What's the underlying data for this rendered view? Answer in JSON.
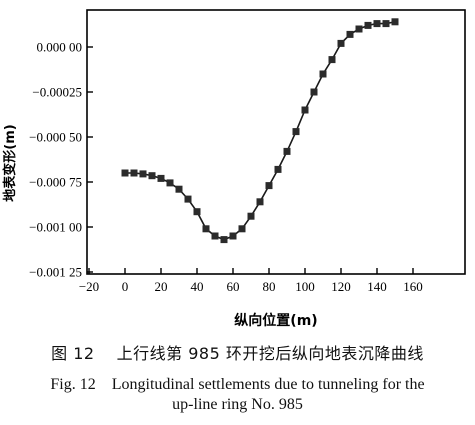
{
  "chart_data": {
    "type": "line",
    "xlabel": "纵向位置(m)",
    "ylabel": "地表变形(m)",
    "xlim": [
      -20,
      160
    ],
    "ylim": [
      -0.00125,
      0.00015
    ],
    "x_ticks": [
      -20,
      0,
      20,
      40,
      60,
      80,
      100,
      120,
      140,
      160
    ],
    "x_tick_labels": [
      "−20",
      "0",
      "20",
      "40",
      "60",
      "80",
      "100",
      "120",
      "140",
      "160"
    ],
    "y_ticks": [
      0.0,
      -0.00025,
      -0.0005,
      -0.00075,
      -0.001,
      -0.00125
    ],
    "y_tick_labels": [
      "0.000 00",
      "−0.00025",
      "−0.000 50",
      "−0.000 75",
      "−0.001 00",
      "−0.001 25"
    ],
    "grid": false,
    "marker": "square",
    "series": [
      {
        "x": [
          0,
          5,
          10,
          15,
          20,
          25,
          30,
          35,
          40,
          45,
          50,
          55,
          60,
          65,
          70,
          75,
          80,
          85,
          90,
          95,
          100,
          105,
          110,
          115,
          120,
          125,
          130,
          135,
          140,
          145,
          150
        ],
        "y": [
          -0.0007,
          -0.0007,
          -0.000705,
          -0.000715,
          -0.00073,
          -0.000755,
          -0.00079,
          -0.000845,
          -0.000915,
          -0.00101,
          -0.00105,
          -0.00107,
          -0.00105,
          -0.00101,
          -0.00094,
          -0.00086,
          -0.00077,
          -0.00068,
          -0.00058,
          -0.00047,
          -0.00035,
          -0.00025,
          -0.00015,
          -7e-05,
          2e-05,
          7e-05,
          0.0001,
          0.00012,
          0.00013,
          0.00013,
          0.00014
        ]
      }
    ]
  },
  "caption": {
    "zh": "图 12　 上行线第 985 环开挖后纵向地表沉降曲线",
    "en_line1": "Fig. 12　Longitudinal settlements due to tunneling for the",
    "en_line2": "up-line ring No. 985"
  },
  "colors": {
    "line": "#1a1a1a",
    "marker": "#2b2b2b",
    "axis": "#000000"
  }
}
